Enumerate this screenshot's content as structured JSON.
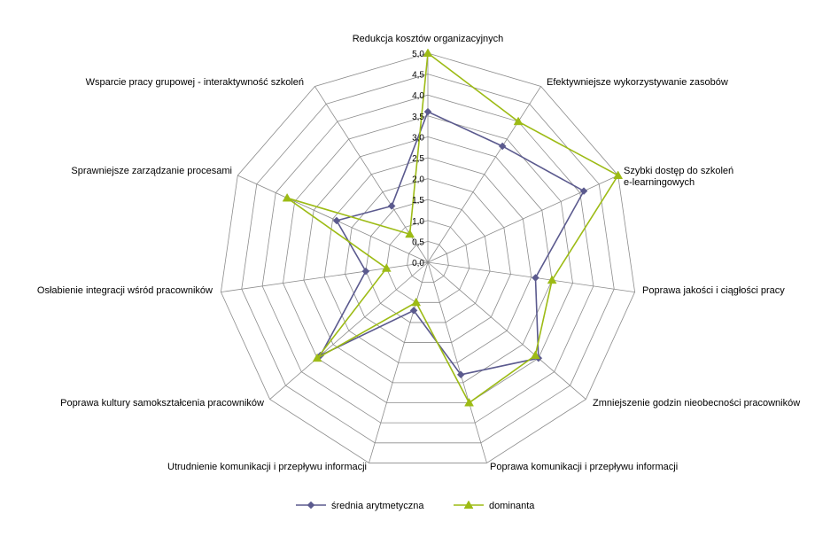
{
  "chart_data": {
    "type": "radar",
    "categories": [
      "Redukcja kosztów organizacyjnych",
      "Efektywniejsze wykorzystywanie zasobów",
      "Szybki dostęp do szkoleń e-learningowych",
      "Poprawa jakości i ciągłości pracy",
      "Zmniejszenie godzin nieobecności pracowników",
      "Poprawa komunikacji i przepływu informacji",
      "Utrudnienie komunikacji i przepływu informacji",
      "Poprawa kultury samokształcenia pracowników",
      "Osłabienie integracji wśród pracowników",
      "Sprawniejsze zarządzanie procesami",
      "Wsparcie pracy grupowej - interaktywność szkoleń"
    ],
    "category_lines": [
      [
        "Redukcja kosztów organizacyjnych"
      ],
      [
        "Efektywniejsze wykorzystywanie zasobów"
      ],
      [
        "Szybki dostęp do szkoleń",
        "e-learningowych"
      ],
      [
        "Poprawa jakości i ciągłości pracy"
      ],
      [
        "Zmniejszenie godzin nieobecności pracowników"
      ],
      [
        "Poprawa komunikacji i przepływu informacji"
      ],
      [
        "Utrudnienie komunikacji i przepływu informacji"
      ],
      [
        "Poprawa kultury samokształcenia pracowników"
      ],
      [
        "Osłabienie integracji wśród pracowników"
      ],
      [
        "Sprawniejsze zarządzanie procesami"
      ],
      [
        "Wsparcie pracy grupowej - interaktywność szkoleń"
      ]
    ],
    "series": [
      {
        "name": "średnia arytmetyczna",
        "color": "#5B5A8E",
        "marker": "diamond",
        "values": [
          3.6,
          3.3,
          4.1,
          2.6,
          3.5,
          2.8,
          1.2,
          3.4,
          1.5,
          2.4,
          1.6
        ]
      },
      {
        "name": "dominanta",
        "color": "#9DBB15",
        "marker": "triangle",
        "values": [
          5.0,
          4.0,
          5.0,
          3.0,
          3.4,
          3.5,
          1.0,
          3.5,
          1.0,
          3.7,
          0.8
        ]
      }
    ],
    "rlim": [
      0,
      5
    ],
    "ticks": [
      "0,0",
      "0,5",
      "1,0",
      "1,5",
      "2,0",
      "2,5",
      "3,0",
      "3,5",
      "4,0",
      "4,5",
      "5,0"
    ],
    "grid": true,
    "legend_position": "bottom"
  }
}
